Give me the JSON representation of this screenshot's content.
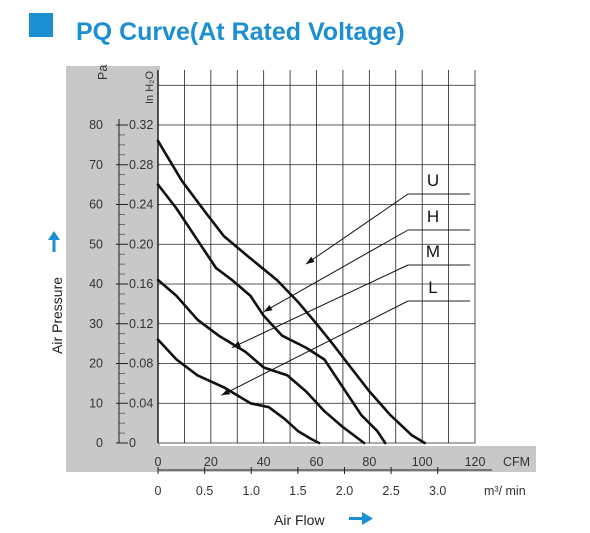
{
  "colors": {
    "accent": "#1b8fd2",
    "panel": "#c8c8c8",
    "grid": "#222222",
    "curve": "#111111"
  },
  "page_title": "PQ Curve(At Rated Voltage)",
  "chart_data": {
    "type": "line",
    "title": "PQ Curve(At Rated Voltage)",
    "xlabel": "Air Flow",
    "ylabel": "Air Pressure",
    "x_unit": "CFM",
    "x2_unit": "m³/ min",
    "y_unit": "Pa",
    "y2_unit": "In H₂O",
    "xlim": [
      0,
      120
    ],
    "ylim": [
      0,
      80
    ],
    "grid": true,
    "x_ticks": [
      "0",
      "20",
      "40",
      "60",
      "80",
      "100",
      "120"
    ],
    "x2_ticks": [
      "0",
      "0.5",
      "1.0",
      "1.5",
      "2.0",
      "2.5",
      "3.0"
    ],
    "y_ticks": [
      "0",
      "10",
      "20",
      "30",
      "40",
      "50",
      "60",
      "70",
      "80"
    ],
    "y2_ticks": [
      "0",
      "0.04",
      "0.08",
      "0.12",
      "0.16",
      "0.20",
      "0.24",
      "0.28",
      "0.32"
    ],
    "series": [
      {
        "name": "U",
        "points": [
          [
            0,
            76
          ],
          [
            9,
            66
          ],
          [
            18,
            58
          ],
          [
            25,
            52
          ],
          [
            34,
            47
          ],
          [
            45,
            41
          ],
          [
            53,
            35.5
          ],
          [
            60,
            30
          ],
          [
            66,
            25
          ],
          [
            73,
            19
          ],
          [
            80,
            13
          ],
          [
            88,
            7
          ],
          [
            96,
            2
          ],
          [
            101,
            0
          ]
        ]
      },
      {
        "name": "H",
        "points": [
          [
            0,
            65
          ],
          [
            7,
            59
          ],
          [
            15,
            51
          ],
          [
            22,
            44
          ],
          [
            28,
            41
          ],
          [
            35,
            37
          ],
          [
            40,
            32
          ],
          [
            47,
            27
          ],
          [
            56,
            24
          ],
          [
            63,
            21
          ],
          [
            70,
            14
          ],
          [
            77,
            7
          ],
          [
            83,
            3
          ],
          [
            86,
            0
          ]
        ]
      },
      {
        "name": "M",
        "points": [
          [
            0,
            41
          ],
          [
            7,
            37
          ],
          [
            15,
            31
          ],
          [
            23,
            27
          ],
          [
            33,
            23
          ],
          [
            40,
            19
          ],
          [
            49,
            17
          ],
          [
            56,
            13
          ],
          [
            63,
            8
          ],
          [
            70,
            4
          ],
          [
            76,
            1
          ],
          [
            78,
            0
          ]
        ]
      },
      {
        "name": "L",
        "points": [
          [
            0,
            26
          ],
          [
            7,
            21
          ],
          [
            15,
            17
          ],
          [
            25,
            14
          ],
          [
            35,
            10
          ],
          [
            42,
            9
          ],
          [
            48,
            6
          ],
          [
            53,
            3
          ],
          [
            58,
            1
          ],
          [
            61,
            0
          ]
        ]
      }
    ]
  }
}
